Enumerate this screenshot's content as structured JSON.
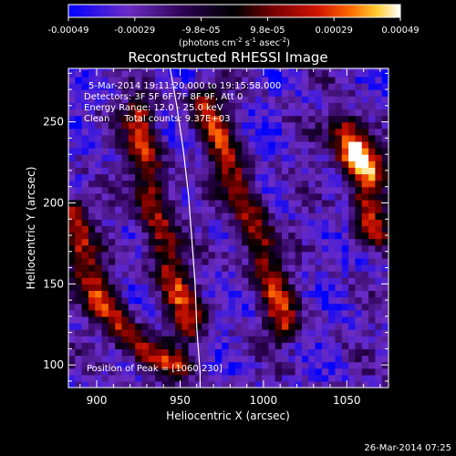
{
  "colorbar": {
    "tick_labels": [
      "-0.00049",
      "-0.00029",
      "-9.8e-05",
      "9.8e-05",
      "0.00029",
      "0.00049"
    ],
    "unit_label_text": "(photons cm",
    "unit_exp1": "-2",
    "unit_mid": " s",
    "unit_exp2": "-1",
    "unit_end": " asec",
    "unit_exp3": "-2",
    "unit_close": ")",
    "range": [
      -0.00049,
      0.00049
    ],
    "colors": [
      "#0000ff",
      "#6b2cc4",
      "#28004a",
      "#000000",
      "#7a0000",
      "#d01400",
      "#ff6a00",
      "#ffcc33",
      "#ffffff"
    ]
  },
  "chart_data": {
    "type": "heatmap",
    "title": "Reconstructed RHESSI Image",
    "xlabel": "Heliocentric X (arcsec)",
    "ylabel": "Heliocentric Y (arcsec)",
    "xlim": [
      883,
      1075
    ],
    "ylim": [
      86,
      283
    ],
    "x_ticks": [
      900,
      950,
      1000,
      1050
    ],
    "y_ticks": [
      100,
      150,
      200,
      250
    ],
    "info_lines": [
      "5-Mar-2014 19:11:20.000 to 19:15:58.000",
      "Detectors: 3F 5F 6F 7F 8F 9F, Att 0",
      "Energy Range: 12.0 - 25.0 keV",
      "Clean     Total counts: 9.37E+03"
    ],
    "peak_label": "Position of Peak = [1060,230]",
    "peak_position": [
      1060,
      230
    ],
    "limb_curve": [
      [
        944,
        283
      ],
      [
        948,
        260
      ],
      [
        952,
        232
      ],
      [
        955,
        205
      ],
      [
        957,
        178
      ],
      [
        959,
        150
      ],
      [
        960,
        123
      ],
      [
        962,
        95
      ],
      [
        962,
        86
      ]
    ],
    "emission_ridges": [
      {
        "name": "",
        "points": [
          [
            885,
            195
          ],
          [
            890,
            170
          ],
          [
            898,
            150
          ],
          [
            908,
            133
          ],
          [
            918,
            118
          ],
          [
            928,
            108
          ],
          [
            945,
            100
          ]
        ]
      },
      {
        "name": "",
        "points": [
          [
            925,
            255
          ],
          [
            930,
            225
          ],
          [
            935,
            195
          ],
          [
            940,
            175
          ],
          [
            945,
            155
          ],
          [
            950,
            140
          ],
          [
            955,
            125
          ]
        ]
      },
      {
        "name": "",
        "points": [
          [
            965,
            262
          ],
          [
            975,
            235
          ],
          [
            985,
            210
          ],
          [
            993,
            190
          ],
          [
            1000,
            165
          ],
          [
            1007,
            145
          ],
          [
            1012,
            125
          ]
        ]
      },
      {
        "name": "",
        "points": [
          [
            1050,
            245
          ],
          [
            1055,
            232
          ],
          [
            1060,
            220
          ],
          [
            1062,
            200
          ],
          [
            1065,
            185
          ]
        ]
      }
    ]
  },
  "footer": {
    "timestamp": "26-Mar-2014 07:25"
  }
}
